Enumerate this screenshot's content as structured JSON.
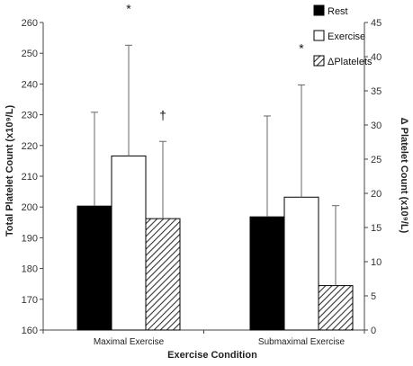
{
  "chart_data": {
    "type": "bar",
    "xlabel": "Exercise Condition",
    "ylabel": "Total Platelet Count (x10⁹/L)",
    "y2label": "Δ Platelet Count (x10⁹/L)",
    "categories": [
      "Maximal Exercise",
      "Submaximal Exercise"
    ],
    "ylim": [
      160,
      260
    ],
    "yticks": [
      160,
      170,
      180,
      190,
      200,
      210,
      220,
      230,
      240,
      250,
      260
    ],
    "y2lim": [
      0,
      45
    ],
    "y2ticks": [
      0,
      5,
      10,
      15,
      20,
      25,
      30,
      35,
      40,
      45
    ],
    "legend_position": "top-right",
    "series": [
      {
        "name": "Rest",
        "axis": "left",
        "fill": "solid",
        "color": "#000000",
        "values": [
          200.3,
          196.8
        ],
        "error": [
          30.5,
          32.8
        ]
      },
      {
        "name": "Exercise",
        "axis": "left",
        "fill": "open",
        "color": "#ffffff",
        "values": [
          216.6,
          203.2
        ],
        "error": [
          36.0,
          36.5
        ]
      },
      {
        "name": "ΔPlatelets",
        "axis": "right",
        "fill": "hatched",
        "color": "#555555",
        "values": [
          16.3,
          6.5
        ],
        "error": [
          11.3,
          11.7
        ]
      }
    ],
    "annotations": [
      {
        "text": "*",
        "category": 0,
        "series": 1
      },
      {
        "text": "†",
        "category": 0,
        "series": 2
      },
      {
        "text": "*",
        "category": 1,
        "series": 1
      }
    ]
  }
}
